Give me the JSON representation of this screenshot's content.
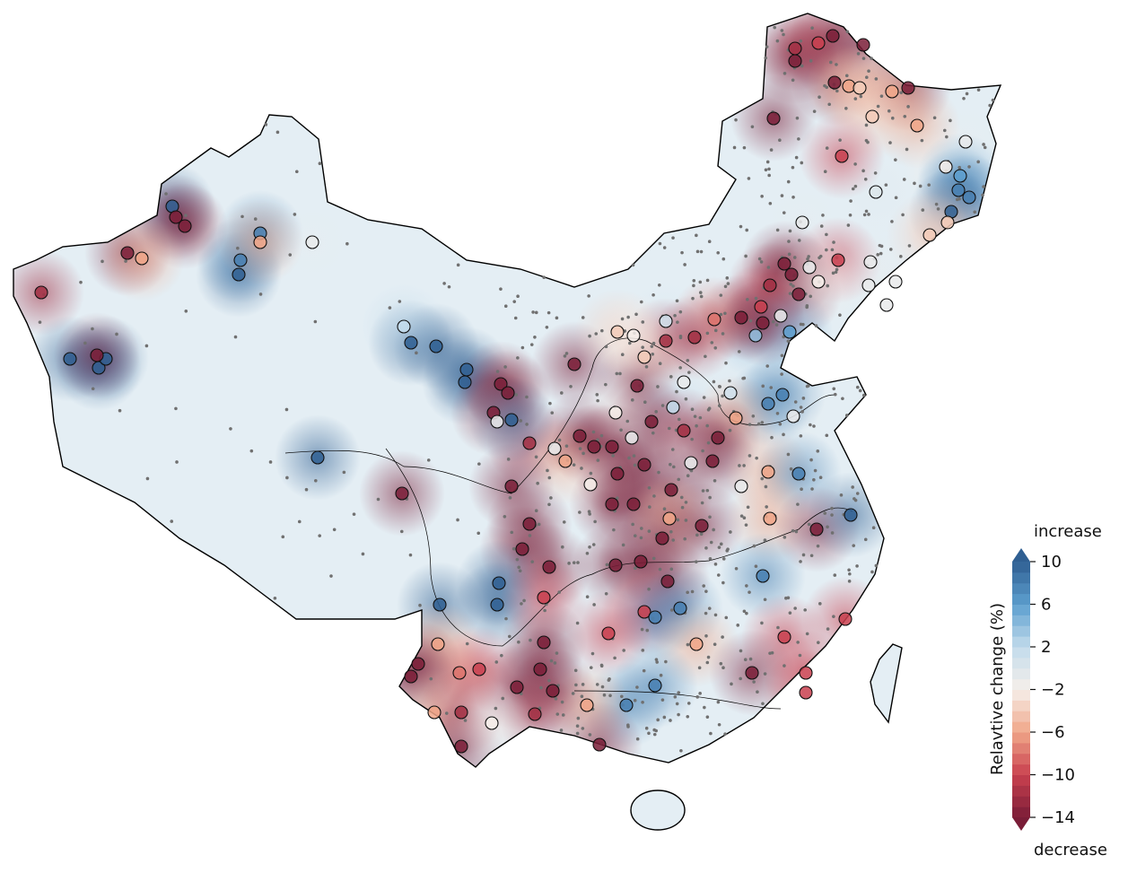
{
  "colorbar": {
    "label": "Relavtive change (%)",
    "top_label": "increase",
    "bottom_label": "decrease",
    "min": -14,
    "max": 10,
    "step": 1,
    "extend": "both",
    "ticks": [
      "10",
      "6",
      "2",
      "−2",
      "−6",
      "−10",
      "−14"
    ],
    "tick_values": [
      10,
      6,
      2,
      -2,
      -6,
      -10,
      -14
    ],
    "colormap": [
      [
        -14,
        "#7a1d37"
      ],
      [
        -10,
        "#c9404f"
      ],
      [
        -6,
        "#f0a688"
      ],
      [
        -2,
        "#f6efea"
      ],
      [
        2,
        "#c3dcec"
      ],
      [
        6,
        "#5d9fcf"
      ],
      [
        10,
        "#2f5f92"
      ]
    ]
  },
  "map": {
    "background_color": "#e4eef4",
    "border_color": "#000000",
    "minor_station_color": "#707070",
    "stations": [
      {
        "lon": 114.8,
        "lat": 57.2,
        "v": -12
      },
      {
        "lon": 116.1,
        "lat": 57.5,
        "v": -10
      },
      {
        "lon": 116.9,
        "lat": 57.9,
        "v": -14
      },
      {
        "lon": 114.8,
        "lat": 56.5,
        "v": -14
      },
      {
        "lon": 118.6,
        "lat": 57.4,
        "v": -14
      },
      {
        "lon": 117.0,
        "lat": 55.3,
        "v": -14
      },
      {
        "lon": 117.8,
        "lat": 55.1,
        "v": -6
      },
      {
        "lon": 118.4,
        "lat": 55.0,
        "v": -4
      },
      {
        "lon": 121.1,
        "lat": 55.0,
        "v": -14
      },
      {
        "lon": 120.2,
        "lat": 54.8,
        "v": -6
      },
      {
        "lon": 113.6,
        "lat": 53.3,
        "v": -14
      },
      {
        "lon": 119.1,
        "lat": 53.4,
        "v": -4
      },
      {
        "lon": 121.6,
        "lat": 52.9,
        "v": -6
      },
      {
        "lon": 117.4,
        "lat": 51.2,
        "v": -10
      },
      {
        "lon": 124.3,
        "lat": 52.0,
        "v": -1
      },
      {
        "lon": 123.2,
        "lat": 50.6,
        "v": -2
      },
      {
        "lon": 124.0,
        "lat": 50.1,
        "v": 6
      },
      {
        "lon": 123.9,
        "lat": 49.3,
        "v": 8
      },
      {
        "lon": 124.5,
        "lat": 48.9,
        "v": 8
      },
      {
        "lon": 123.5,
        "lat": 48.1,
        "v": 10
      },
      {
        "lon": 119.3,
        "lat": 49.2,
        "v": 0
      },
      {
        "lon": 115.2,
        "lat": 47.5,
        "v": -1
      },
      {
        "lon": 123.3,
        "lat": 47.5,
        "v": -4
      },
      {
        "lon": 122.3,
        "lat": 46.8,
        "v": -4
      },
      {
        "lon": 117.2,
        "lat": 45.4,
        "v": -10
      },
      {
        "lon": 119.0,
        "lat": 45.3,
        "v": -1
      },
      {
        "lon": 118.9,
        "lat": 44.0,
        "v": -1
      },
      {
        "lon": 120.4,
        "lat": 44.2,
        "v": -1
      },
      {
        "lon": 119.9,
        "lat": 42.9,
        "v": -1
      },
      {
        "lon": 114.2,
        "lat": 45.2,
        "v": -14
      },
      {
        "lon": 113.4,
        "lat": 44.0,
        "v": -12
      },
      {
        "lon": 114.6,
        "lat": 44.6,
        "v": -14
      },
      {
        "lon": 115.0,
        "lat": 43.5,
        "v": -14
      },
      {
        "lon": 115.6,
        "lat": 45.0,
        "v": -1
      },
      {
        "lon": 116.1,
        "lat": 44.2,
        "v": -2
      },
      {
        "lon": 112.9,
        "lat": 42.8,
        "v": -10
      },
      {
        "lon": 114.0,
        "lat": 42.3,
        "v": -1
      },
      {
        "lon": 114.5,
        "lat": 41.4,
        "v": 6
      },
      {
        "lon": 112.6,
        "lat": 41.2,
        "v": 4
      },
      {
        "lon": 111.8,
        "lat": 42.2,
        "v": -14
      },
      {
        "lon": 110.3,
        "lat": 42.1,
        "v": -8
      },
      {
        "lon": 109.2,
        "lat": 41.1,
        "v": -12
      },
      {
        "lon": 107.6,
        "lat": 42.0,
        "v": 1
      },
      {
        "lon": 107.6,
        "lat": 40.9,
        "v": -12
      },
      {
        "lon": 106.4,
        "lat": 40.0,
        "v": -4
      },
      {
        "lon": 106.0,
        "lat": 38.4,
        "v": -14
      },
      {
        "lon": 108.6,
        "lat": 38.6,
        "v": -1
      },
      {
        "lon": 111.2,
        "lat": 38.0,
        "v": 1
      },
      {
        "lon": 113.3,
        "lat": 37.4,
        "v": 8
      },
      {
        "lon": 114.1,
        "lat": 37.9,
        "v": 8
      },
      {
        "lon": 114.7,
        "lat": 36.7,
        "v": -1
      },
      {
        "lon": 108.0,
        "lat": 37.2,
        "v": 2
      },
      {
        "lon": 111.5,
        "lat": 36.6,
        "v": -6
      },
      {
        "lon": 104.8,
        "lat": 36.9,
        "v": -2
      },
      {
        "lon": 106.8,
        "lat": 36.4,
        "v": -14
      },
      {
        "lon": 104.6,
        "lat": 35.0,
        "v": -14
      },
      {
        "lon": 102.8,
        "lat": 35.6,
        "v": -14
      },
      {
        "lon": 100.0,
        "lat": 35.2,
        "v": -12
      },
      {
        "lon": 101.4,
        "lat": 34.9,
        "v": -1
      },
      {
        "lon": 102.0,
        "lat": 34.2,
        "v": -6
      },
      {
        "lon": 103.6,
        "lat": 35.0,
        "v": -14
      },
      {
        "lon": 105.7,
        "lat": 35.5,
        "v": -1
      },
      {
        "lon": 108.6,
        "lat": 35.9,
        "v": -12
      },
      {
        "lon": 110.5,
        "lat": 35.5,
        "v": -14
      },
      {
        "lon": 110.2,
        "lat": 34.2,
        "v": -14
      },
      {
        "lon": 109.0,
        "lat": 34.1,
        "v": -1
      },
      {
        "lon": 107.9,
        "lat": 32.6,
        "v": -14
      },
      {
        "lon": 111.8,
        "lat": 32.8,
        "v": -1
      },
      {
        "lon": 113.3,
        "lat": 33.6,
        "v": -6
      },
      {
        "lon": 115.0,
        "lat": 33.5,
        "v": 8
      },
      {
        "lon": 106.4,
        "lat": 34.0,
        "v": -14
      },
      {
        "lon": 104.9,
        "lat": 33.5,
        "v": -14
      },
      {
        "lon": 103.4,
        "lat": 32.9,
        "v": -2
      },
      {
        "lon": 99.0,
        "lat": 32.8,
        "v": -14
      },
      {
        "lon": 104.6,
        "lat": 31.8,
        "v": -14
      },
      {
        "lon": 105.8,
        "lat": 31.8,
        "v": -14
      },
      {
        "lon": 107.8,
        "lat": 31.0,
        "v": -6
      },
      {
        "lon": 109.6,
        "lat": 30.6,
        "v": -14
      },
      {
        "lon": 113.4,
        "lat": 31.0,
        "v": -6
      },
      {
        "lon": 116.0,
        "lat": 30.4,
        "v": -14
      },
      {
        "lon": 117.9,
        "lat": 31.2,
        "v": 10
      },
      {
        "lon": 113.0,
        "lat": 27.8,
        "v": 8
      },
      {
        "lon": 107.4,
        "lat": 29.9,
        "v": -14
      },
      {
        "lon": 106.2,
        "lat": 28.6,
        "v": -14
      },
      {
        "lon": 104.8,
        "lat": 28.4,
        "v": -14
      },
      {
        "lon": 107.7,
        "lat": 27.5,
        "v": -14
      },
      {
        "lon": 106.4,
        "lat": 25.8,
        "v": -10
      },
      {
        "lon": 107.0,
        "lat": 25.5,
        "v": 8
      },
      {
        "lon": 108.4,
        "lat": 26.0,
        "v": 8
      },
      {
        "lon": 104.4,
        "lat": 24.6,
        "v": -10
      },
      {
        "lon": 109.3,
        "lat": 24.0,
        "v": -6
      },
      {
        "lon": 114.2,
        "lat": 24.4,
        "v": -10
      },
      {
        "lon": 117.6,
        "lat": 25.4,
        "v": -10
      },
      {
        "lon": 112.4,
        "lat": 22.4,
        "v": -14
      },
      {
        "lon": 115.4,
        "lat": 22.4,
        "v": -10
      },
      {
        "lon": 115.4,
        "lat": 21.3,
        "v": -10
      },
      {
        "lon": 107.0,
        "lat": 21.7,
        "v": 8
      },
      {
        "lon": 105.4,
        "lat": 20.6,
        "v": 8
      },
      {
        "lon": 103.2,
        "lat": 20.6,
        "v": -6
      },
      {
        "lon": 103.9,
        "lat": 18.4,
        "v": -14
      },
      {
        "lon": 101.1,
        "lat": 28.3,
        "v": -14
      },
      {
        "lon": 99.6,
        "lat": 29.3,
        "v": -14
      },
      {
        "lon": 100.0,
        "lat": 30.7,
        "v": -14
      },
      {
        "lon": 98.3,
        "lat": 27.4,
        "v": 10
      },
      {
        "lon": 98.2,
        "lat": 26.2,
        "v": 10
      },
      {
        "lon": 95.0,
        "lat": 26.2,
        "v": 10
      },
      {
        "lon": 100.8,
        "lat": 26.6,
        "v": -10
      },
      {
        "lon": 100.8,
        "lat": 24.1,
        "v": -14
      },
      {
        "lon": 100.6,
        "lat": 22.6,
        "v": -14
      },
      {
        "lon": 101.3,
        "lat": 21.4,
        "v": -14
      },
      {
        "lon": 99.3,
        "lat": 21.6,
        "v": -14
      },
      {
        "lon": 100.3,
        "lat": 20.1,
        "v": -12
      },
      {
        "lon": 97.2,
        "lat": 22.6,
        "v": -10
      },
      {
        "lon": 96.1,
        "lat": 22.4,
        "v": -8
      },
      {
        "lon": 94.9,
        "lat": 24.0,
        "v": -6
      },
      {
        "lon": 93.8,
        "lat": 22.9,
        "v": -14
      },
      {
        "lon": 93.4,
        "lat": 22.2,
        "v": -14
      },
      {
        "lon": 94.7,
        "lat": 20.2,
        "v": -6
      },
      {
        "lon": 96.2,
        "lat": 20.2,
        "v": -12
      },
      {
        "lon": 96.2,
        "lat": 18.3,
        "v": -14
      },
      {
        "lon": 97.9,
        "lat": 19.6,
        "v": -2
      },
      {
        "lon": 92.9,
        "lat": 32.4,
        "v": -14
      },
      {
        "lon": 88.2,
        "lat": 34.4,
        "v": 10
      },
      {
        "lon": 96.5,
        "lat": 39.3,
        "v": 10
      },
      {
        "lon": 96.4,
        "lat": 38.6,
        "v": 10
      },
      {
        "lon": 98.4,
        "lat": 38.5,
        "v": -14
      },
      {
        "lon": 98.8,
        "lat": 38.0,
        "v": -14
      },
      {
        "lon": 98.0,
        "lat": 36.9,
        "v": -14
      },
      {
        "lon": 99.0,
        "lat": 36.5,
        "v": 10
      },
      {
        "lon": 98.2,
        "lat": 36.4,
        "v": -1
      },
      {
        "lon": 93.4,
        "lat": 40.8,
        "v": 10
      },
      {
        "lon": 94.8,
        "lat": 40.6,
        "v": 10
      },
      {
        "lon": 93.0,
        "lat": 41.7,
        "v": 2
      },
      {
        "lon": 83.8,
        "lat": 44.6,
        "v": 10
      },
      {
        "lon": 83.9,
        "lat": 45.4,
        "v": 8
      },
      {
        "lon": 85.0,
        "lat": 46.9,
        "v": 8
      },
      {
        "lon": 85.0,
        "lat": 46.4,
        "v": -6
      },
      {
        "lon": 87.9,
        "lat": 46.4,
        "v": -1
      },
      {
        "lon": 80.1,
        "lat": 48.4,
        "v": 10
      },
      {
        "lon": 80.3,
        "lat": 47.8,
        "v": -14
      },
      {
        "lon": 80.8,
        "lat": 47.3,
        "v": -14
      },
      {
        "lon": 77.6,
        "lat": 45.8,
        "v": -14
      },
      {
        "lon": 78.4,
        "lat": 45.5,
        "v": -6
      },
      {
        "lon": 72.8,
        "lat": 43.6,
        "v": -12
      },
      {
        "lon": 74.4,
        "lat": 39.9,
        "v": 10
      },
      {
        "lon": 76.0,
        "lat": 39.4,
        "v": 10
      },
      {
        "lon": 76.4,
        "lat": 39.9,
        "v": 10
      },
      {
        "lon": 75.9,
        "lat": 40.1,
        "v": -14
      },
      {
        "lon": 102.5,
        "lat": 39.6,
        "v": -14
      },
      {
        "lon": 104.9,
        "lat": 41.4,
        "v": -4
      },
      {
        "lon": 105.8,
        "lat": 41.2,
        "v": -2
      },
      {
        "lon": 113.0,
        "lat": 41.9,
        "v": -14
      }
    ]
  }
}
